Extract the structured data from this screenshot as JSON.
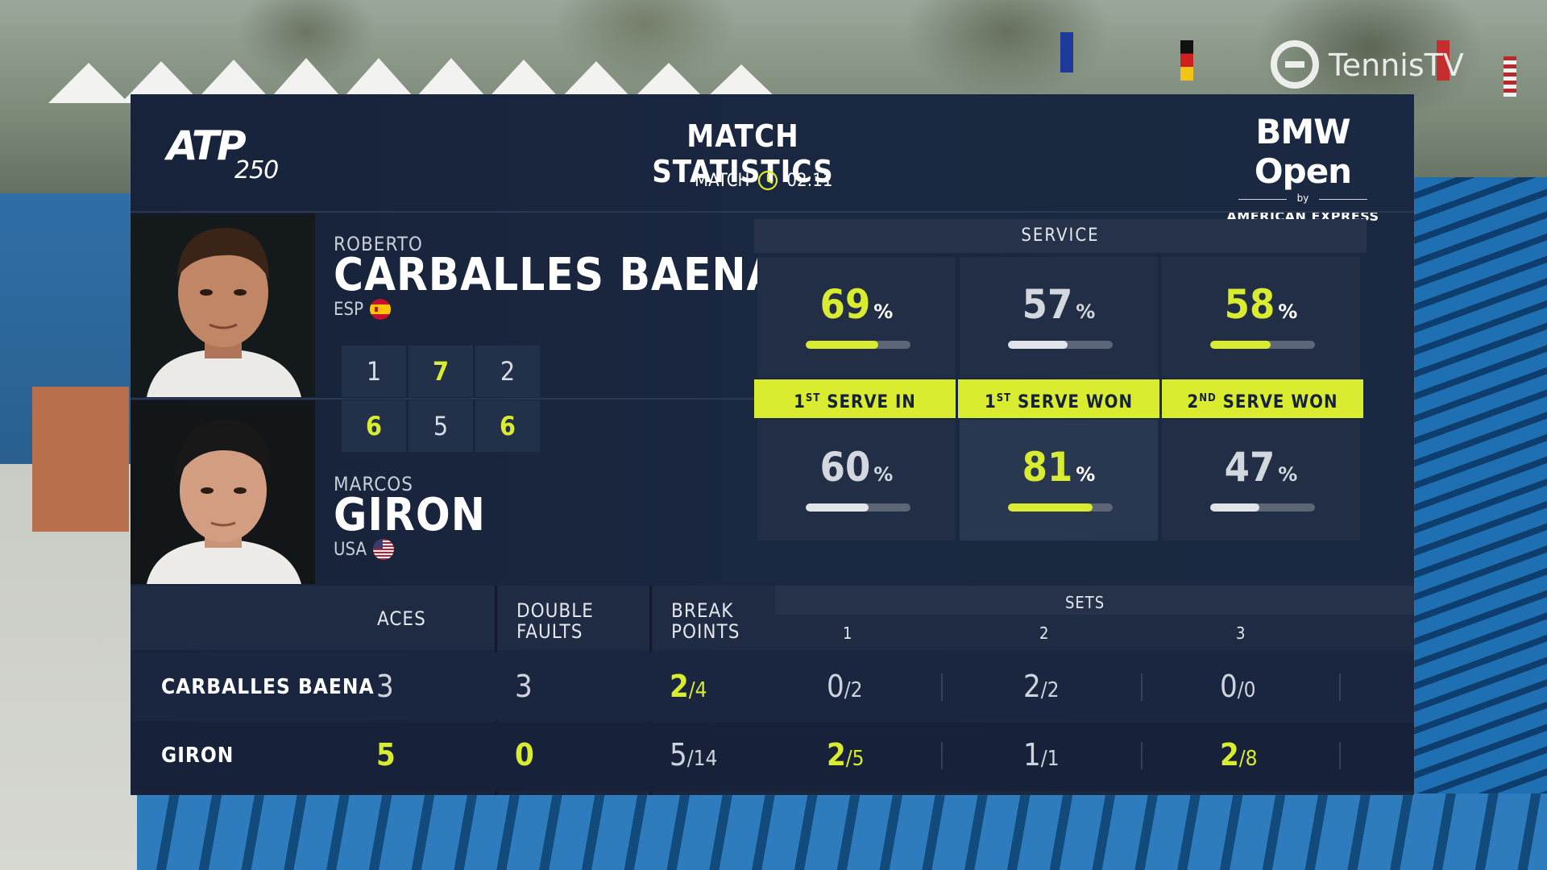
{
  "broadcaster": "TennisTV",
  "header": {
    "tour_logo": "ATP",
    "tour_level": "250",
    "title": "MATCH STATISTICS",
    "timer_label": "MATCH",
    "timer_value": "02:11",
    "sponsor_name": "BMW Open",
    "sponsor_by": "by",
    "sponsor_sub": "AMERICAN EXPRESS"
  },
  "players": [
    {
      "first_name": "ROBERTO",
      "last_name": "CARBALLES BAENA",
      "country": "ESP",
      "flag_icon": "spain-flag-icon",
      "sets": [
        "1",
        "7",
        "2"
      ],
      "set_won": [
        false,
        true,
        false
      ]
    },
    {
      "first_name": "MARCOS",
      "last_name": "GIRON",
      "country": "USA",
      "flag_icon": "usa-flag-icon",
      "sets": [
        "6",
        "5",
        "6"
      ],
      "set_won": [
        true,
        false,
        true
      ]
    }
  ],
  "service": {
    "heading": "SERVICE",
    "categories": [
      {
        "label_num": "1",
        "label_sup": "ST",
        "label_rest": " SERVE IN"
      },
      {
        "label_num": "1",
        "label_sup": "ST",
        "label_rest": " SERVE WON"
      },
      {
        "label_num": "2",
        "label_sup": "ND",
        "label_rest": " SERVE WON"
      }
    ],
    "player1": [
      {
        "value": "69",
        "unit": "%",
        "fraction": 0.69,
        "leader": true
      },
      {
        "value": "57",
        "unit": "%",
        "fraction": 0.57,
        "leader": false
      },
      {
        "value": "58",
        "unit": "%",
        "fraction": 0.58,
        "leader": true
      }
    ],
    "player2": [
      {
        "value": "60",
        "unit": "%",
        "fraction": 0.6,
        "leader": false
      },
      {
        "value": "81",
        "unit": "%",
        "fraction": 0.81,
        "leader": true
      },
      {
        "value": "47",
        "unit": "%",
        "fraction": 0.47,
        "leader": false
      }
    ]
  },
  "table": {
    "headers": {
      "aces": "ACES",
      "double_faults_1": "DOUBLE",
      "double_faults_2": "FAULTS",
      "break_points_1": "BREAK",
      "break_points_2": "POINTS",
      "sets": "SETS",
      "set_cols": [
        "1",
        "2",
        "3"
      ]
    },
    "rows": [
      {
        "name": "CARBALLES BAENA",
        "aces": "3",
        "aces_leader": false,
        "double_faults": "3",
        "df_leader": false,
        "break_points": {
          "num": "2",
          "den": "/4",
          "leader": true
        },
        "sets": [
          {
            "num": "0",
            "den": "/2",
            "leader": false
          },
          {
            "num": "2",
            "den": "/2",
            "leader": false
          },
          {
            "num": "0",
            "den": "/0",
            "leader": false
          }
        ]
      },
      {
        "name": "GIRON",
        "aces": "5",
        "aces_leader": true,
        "double_faults": "0",
        "df_leader": true,
        "break_points": {
          "num": "5",
          "den": "/14",
          "leader": false
        },
        "sets": [
          {
            "num": "2",
            "den": "/5",
            "leader": true
          },
          {
            "num": "1",
            "den": "/1",
            "leader": false
          },
          {
            "num": "2",
            "den": "/8",
            "leader": true
          }
        ]
      }
    ]
  },
  "colors": {
    "accent": "#d9ec2f",
    "panel": "#17233a"
  }
}
